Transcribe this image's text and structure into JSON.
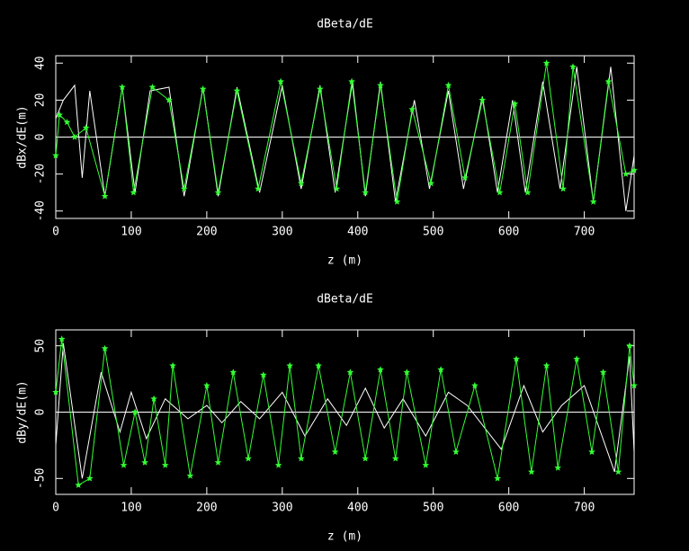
{
  "chart_data": [
    {
      "type": "line",
      "title": "dBeta/dE",
      "xlabel": "z (m)",
      "ylabel": "dBx/dE(m)",
      "xlim": [
        0,
        766
      ],
      "ylim": [
        -44,
        44
      ],
      "xticks": [
        0,
        100,
        200,
        300,
        400,
        500,
        600,
        700
      ],
      "yticks": [
        -40,
        -20,
        0,
        20,
        40
      ],
      "series": [
        {
          "color": "#ffffff",
          "markers": false,
          "x": [
            0,
            10,
            25,
            35,
            45,
            65,
            88,
            105,
            125,
            150,
            170,
            195,
            215,
            240,
            270,
            300,
            325,
            350,
            370,
            393,
            410,
            430,
            450,
            475,
            495,
            520,
            540,
            565,
            585,
            605,
            622,
            645,
            668,
            690,
            712,
            735,
            755,
            766
          ],
          "values": [
            10,
            20,
            28,
            -22,
            25,
            -32,
            27,
            -30,
            25,
            27,
            -32,
            27,
            -32,
            27,
            -30,
            28,
            -28,
            28,
            -30,
            30,
            -32,
            30,
            -35,
            20,
            -28,
            25,
            -28,
            22,
            -30,
            20,
            -30,
            30,
            -28,
            38,
            -35,
            38,
            -40,
            -10
          ]
        },
        {
          "color": "#33ff33",
          "markers": true,
          "x": [
            0,
            5,
            15,
            25,
            40,
            65,
            88,
            103,
            128,
            150,
            170,
            195,
            215,
            240,
            268,
            298,
            325,
            350,
            372,
            392,
            410,
            430,
            452,
            472,
            497,
            520,
            542,
            565,
            588,
            608,
            625,
            650,
            672,
            685,
            712,
            732,
            755,
            766
          ],
          "values": [
            -10,
            12,
            8,
            0,
            5,
            -32,
            27,
            -30,
            27,
            20,
            -28,
            26,
            -30,
            25,
            -28,
            30,
            -25,
            26,
            -28,
            30,
            -30,
            28,
            -35,
            15,
            -25,
            28,
            -22,
            20,
            -30,
            18,
            -30,
            40,
            -28,
            38,
            -35,
            30,
            -20,
            -18
          ]
        }
      ]
    },
    {
      "type": "line",
      "title": "dBeta/dE",
      "xlabel": "z (m)",
      "ylabel": "dBy/dE(m)",
      "xlim": [
        0,
        766
      ],
      "ylim": [
        -62,
        62
      ],
      "xticks": [
        0,
        100,
        200,
        300,
        400,
        500,
        600,
        700
      ],
      "yticks": [
        -50,
        0,
        50
      ],
      "series": [
        {
          "color": "#ffffff",
          "markers": false,
          "x": [
            0,
            10,
            35,
            60,
            85,
            100,
            120,
            145,
            175,
            200,
            220,
            245,
            270,
            300,
            330,
            360,
            385,
            410,
            435,
            460,
            490,
            520,
            545,
            590,
            620,
            645,
            670,
            700,
            740,
            760,
            766
          ],
          "values": [
            -25,
            52,
            -50,
            30,
            -15,
            15,
            -20,
            10,
            -5,
            5,
            -8,
            8,
            -5,
            15,
            -18,
            10,
            -10,
            18,
            -12,
            10,
            -18,
            15,
            5,
            -28,
            20,
            -15,
            5,
            20,
            -45,
            42,
            -30
          ]
        },
        {
          "color": "#33ff33",
          "markers": true,
          "x": [
            0,
            8,
            30,
            45,
            65,
            90,
            105,
            118,
            130,
            145,
            155,
            178,
            200,
            215,
            235,
            255,
            275,
            295,
            310,
            325,
            348,
            370,
            390,
            410,
            430,
            450,
            465,
            490,
            510,
            530,
            555,
            585,
            610,
            630,
            650,
            665,
            690,
            710,
            725,
            745,
            760,
            766
          ],
          "values": [
            15,
            55,
            -55,
            -50,
            48,
            -40,
            0,
            -38,
            10,
            -40,
            35,
            -48,
            20,
            -38,
            30,
            -35,
            28,
            -40,
            35,
            -35,
            35,
            -30,
            30,
            -35,
            32,
            -35,
            30,
            -40,
            32,
            -30,
            20,
            -50,
            40,
            -45,
            35,
            -42,
            40,
            -30,
            30,
            -45,
            50,
            20
          ]
        }
      ]
    }
  ]
}
